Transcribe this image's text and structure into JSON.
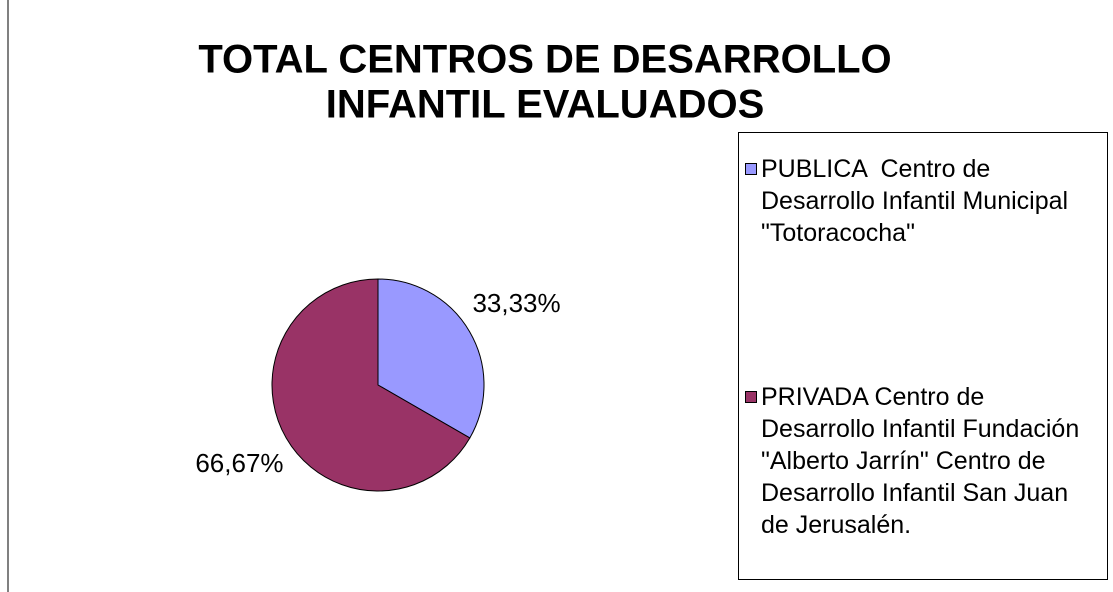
{
  "chart_data": {
    "type": "pie",
    "title": [
      "TOTAL CENTROS DE DESARROLLO",
      "INFANTIL EVALUADOS"
    ],
    "categories": [
      "PUBLICA  Centro de Desarrollo Infantil Municipal \"Totoracocha\"",
      "PRIVADA Centro de Desarrollo Infantil Fundación \"Alberto Jarrín\" Centro de Desarrollo Infantil San Juan de Jerusalén."
    ],
    "values": [
      33.33,
      66.67
    ],
    "value_labels": [
      "33,33%",
      "66,67%"
    ],
    "colors": [
      "#9999ff",
      "#993366"
    ],
    "legend": "right"
  }
}
